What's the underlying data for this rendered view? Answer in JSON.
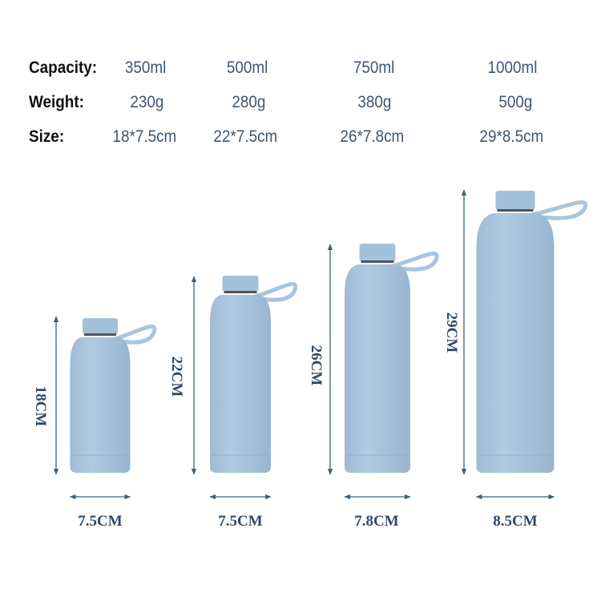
{
  "specs": {
    "labels": {
      "capacity": "Capacity:",
      "weight": "Weight:",
      "size": "Size:"
    },
    "columns": [
      {
        "capacity": "350ml",
        "weight": "230g",
        "size": "18*7.5cm"
      },
      {
        "capacity": "500ml",
        "weight": "280g",
        "size": "22*7.5cm"
      },
      {
        "capacity": "750ml",
        "weight": "380g",
        "size": "26*7.8cm"
      },
      {
        "capacity": "1000ml",
        "weight": "500g",
        "size": "29*8.5cm"
      }
    ]
  },
  "bottles": [
    {
      "height_label": "18CM",
      "width_label": "7.5CM"
    },
    {
      "height_label": "22CM",
      "width_label": "7.5CM"
    },
    {
      "height_label": "26CM",
      "width_label": "7.8CM"
    },
    {
      "height_label": "29CM",
      "width_label": "8.5CM"
    }
  ],
  "colors": {
    "bottle": "#a9c5de",
    "text": "#3f5670",
    "arrow": "#3f5f7e"
  }
}
